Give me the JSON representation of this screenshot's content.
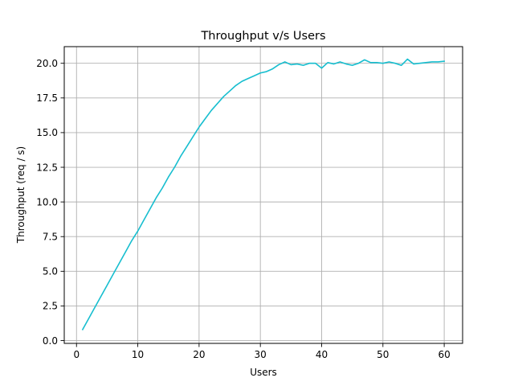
{
  "chart_data": {
    "type": "line",
    "title": "Throughput v/s Users",
    "xlabel": "Users",
    "ylabel": "Throughput (req / s)",
    "xlim": [
      -2,
      63
    ],
    "ylim": [
      -0.2,
      21.2
    ],
    "xticks": [
      0,
      10,
      20,
      30,
      40,
      50,
      60
    ],
    "yticks": [
      0.0,
      2.5,
      5.0,
      7.5,
      10.0,
      12.5,
      15.0,
      17.5,
      20.0
    ],
    "xtick_labels": [
      "0",
      "10",
      "20",
      "30",
      "40",
      "50",
      "60"
    ],
    "ytick_labels": [
      "0.0",
      "2.5",
      "5.0",
      "7.5",
      "10.0",
      "12.5",
      "15.0",
      "17.5",
      "20.0"
    ],
    "grid": true,
    "series": [
      {
        "color": "#17becf",
        "x": [
          1,
          2,
          3,
          4,
          5,
          6,
          7,
          8,
          9,
          10,
          11,
          12,
          13,
          14,
          15,
          16,
          17,
          18,
          19,
          20,
          21,
          22,
          23,
          24,
          25,
          26,
          27,
          28,
          29,
          30,
          31,
          32,
          33,
          34,
          35,
          36,
          37,
          38,
          39,
          40,
          41,
          42,
          43,
          44,
          45,
          46,
          47,
          48,
          49,
          50,
          51,
          52,
          53,
          54,
          55,
          56,
          57,
          58,
          59,
          60
        ],
        "y": [
          0.8,
          1.6,
          2.4,
          3.2,
          4.0,
          4.8,
          5.6,
          6.4,
          7.2,
          7.9,
          8.7,
          9.5,
          10.3,
          11.0,
          11.8,
          12.5,
          13.3,
          14.0,
          14.7,
          15.4,
          16.0,
          16.6,
          17.1,
          17.6,
          18.0,
          18.4,
          18.7,
          18.9,
          19.1,
          19.3,
          19.4,
          19.6,
          19.9,
          20.1,
          19.9,
          19.95,
          19.85,
          20.0,
          20.0,
          19.65,
          20.05,
          19.95,
          20.1,
          19.95,
          19.85,
          20.0,
          20.25,
          20.05,
          20.05,
          20.0,
          20.1,
          20.0,
          19.85,
          20.3,
          19.95,
          20.0,
          20.05,
          20.1,
          20.1,
          20.15
        ]
      }
    ]
  }
}
